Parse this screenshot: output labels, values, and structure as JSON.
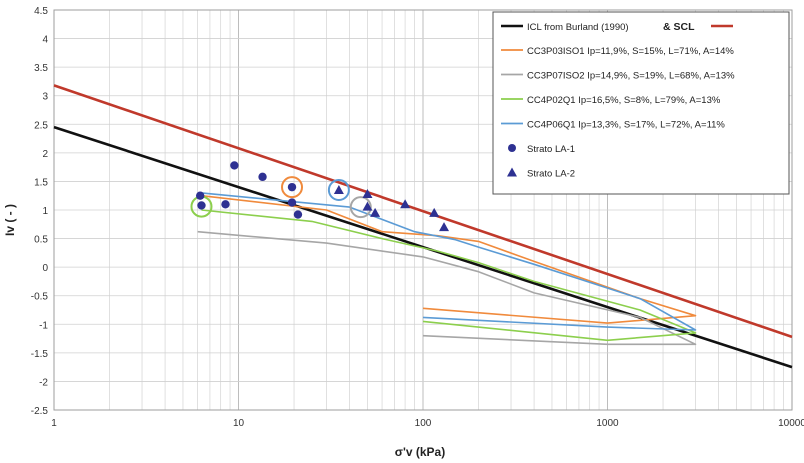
{
  "chart_data": {
    "type": "line",
    "xlabel": "σ'v (kPa)",
    "ylabel": "Iv ( - )",
    "xscale": "log",
    "xlim": [
      1,
      10000
    ],
    "ylim": [
      -2.5,
      4.5
    ],
    "grid": true,
    "legend_position": "top-right",
    "x_ticks": [
      {
        "value": 1,
        "label": "1"
      },
      {
        "value": 10,
        "label": "10"
      },
      {
        "value": 100,
        "label": "100"
      },
      {
        "value": 1000,
        "label": "1000"
      },
      {
        "value": 10000,
        "label": "10000"
      }
    ],
    "y_ticks": [
      {
        "value": 4.5,
        "label": "4.5"
      },
      {
        "value": 4,
        "label": "4"
      },
      {
        "value": 3.5,
        "label": "3.5"
      },
      {
        "value": 3,
        "label": "3"
      },
      {
        "value": 2.5,
        "label": "2.5"
      },
      {
        "value": 2,
        "label": "2"
      },
      {
        "value": 1.5,
        "label": "1.5"
      },
      {
        "value": 1,
        "label": "1"
      },
      {
        "value": 0.5,
        "label": "0.5"
      },
      {
        "value": 0,
        "label": "0"
      },
      {
        "value": -0.5,
        "label": "-0.5"
      },
      {
        "value": -1,
        "label": "-1"
      },
      {
        "value": -1.5,
        "label": "-1.5"
      },
      {
        "value": -2,
        "label": "-2"
      },
      {
        "value": -2.5,
        "label": "-2.5"
      }
    ],
    "legend": {
      "icl_label": "ICL from Burland (1990)",
      "scl_label": "& SCL"
    },
    "series": [
      {
        "name": "ICL from Burland (1990)",
        "kind": "line",
        "color": "#111111",
        "points": [
          [
            1,
            2.45
          ],
          [
            10000,
            -1.75
          ]
        ]
      },
      {
        "name": "SCL",
        "kind": "line",
        "color": "#c0392b",
        "points": [
          [
            1,
            3.18
          ],
          [
            10000,
            -1.22
          ]
        ]
      },
      {
        "name": "CC3P03ISO1 Ip=11,9%, S=15%, L=71%, A=14%",
        "kind": "line",
        "color": "#f08a3c",
        "points": [
          [
            6.3,
            1.25
          ],
          [
            30,
            1.0
          ],
          [
            60,
            0.62
          ],
          [
            120,
            0.55
          ],
          [
            200,
            0.45
          ],
          [
            400,
            0.1
          ],
          [
            1500,
            -0.55
          ],
          [
            3000,
            -0.85
          ],
          [
            1000,
            -0.98
          ],
          [
            100,
            -0.72
          ]
        ]
      },
      {
        "name": "CC3P07ISO2 Ip=14,9%, S=19%, L=68%, A=13%",
        "kind": "line",
        "color": "#a6a6a6",
        "points": [
          [
            6,
            0.62
          ],
          [
            30,
            0.42
          ],
          [
            100,
            0.18
          ],
          [
            200,
            -0.08
          ],
          [
            400,
            -0.45
          ],
          [
            1500,
            -0.88
          ],
          [
            3000,
            -1.35
          ],
          [
            1000,
            -1.35
          ],
          [
            100,
            -1.2
          ]
        ]
      },
      {
        "name": "CC4P02Q1  Ip=16,5%, S=8%, L=79%, A=13%",
        "kind": "line",
        "color": "#8ccf4d",
        "points": [
          [
            6.3,
            1.0
          ],
          [
            25,
            0.8
          ],
          [
            60,
            0.5
          ],
          [
            120,
            0.28
          ],
          [
            200,
            0.08
          ],
          [
            400,
            -0.25
          ],
          [
            1500,
            -0.75
          ],
          [
            3000,
            -1.15
          ],
          [
            1000,
            -1.28
          ],
          [
            100,
            -0.95
          ]
        ]
      },
      {
        "name": "CC4P06Q1  Ip=13,3%, S=17%, L=72%, A=11%",
        "kind": "line",
        "color": "#5b9bd5",
        "points": [
          [
            6.3,
            1.3
          ],
          [
            40,
            1.05
          ],
          [
            90,
            0.62
          ],
          [
            150,
            0.48
          ],
          [
            200,
            0.35
          ],
          [
            400,
            0.05
          ],
          [
            1500,
            -0.55
          ],
          [
            3000,
            -1.1
          ],
          [
            1000,
            -1.05
          ],
          [
            100,
            -0.88
          ]
        ]
      },
      {
        "name": "Strato LA-1",
        "kind": "scatter",
        "marker": "circle",
        "color": "#2e3192",
        "points": [
          [
            6.3,
            1.08
          ],
          [
            6.2,
            1.25
          ],
          [
            8.5,
            1.1
          ],
          [
            9.5,
            1.78
          ],
          [
            13.5,
            1.58
          ],
          [
            19.5,
            1.4
          ],
          [
            19.5,
            1.13
          ],
          [
            21,
            0.92
          ]
        ]
      },
      {
        "name": "Strato LA-2",
        "kind": "scatter",
        "marker": "triangle",
        "color": "#2e3192",
        "points": [
          [
            35,
            1.35
          ],
          [
            50,
            1.28
          ],
          [
            50,
            1.06
          ],
          [
            55,
            0.95
          ],
          [
            80,
            1.1
          ],
          [
            115,
            0.95
          ],
          [
            130,
            0.7
          ]
        ]
      }
    ],
    "annotation_circles": [
      {
        "x": 6.3,
        "y": 1.06,
        "color": "#8ccf4d"
      },
      {
        "x": 19.5,
        "y": 1.4,
        "color": "#f08a3c"
      },
      {
        "x": 35,
        "y": 1.35,
        "color": "#5b9bd5"
      },
      {
        "x": 46,
        "y": 1.05,
        "color": "#a6a6a6"
      }
    ]
  }
}
